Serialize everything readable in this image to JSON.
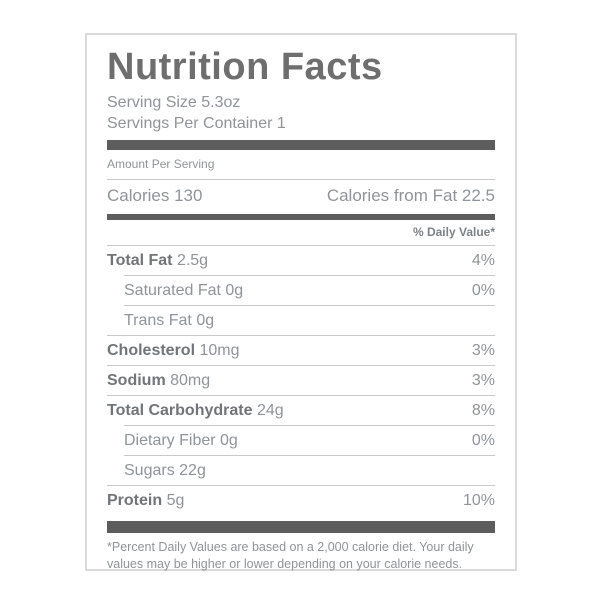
{
  "colors": {
    "title": "#6e6e6e",
    "text_bold": "#717579",
    "text_regular": "#8f949a",
    "thick_bar": "#5d5d5d",
    "thin_divider": "#c9c9c9",
    "box_border": "#dadada"
  },
  "label": {
    "title": "Nutrition Facts",
    "serving_size": "Serving Size 5.3oz",
    "servings_per_container": "Servings Per Container 1",
    "amount_per_serving": "Amount Per Serving",
    "calories": "Calories 130",
    "calories_from_fat": "Calories from Fat 22.5",
    "daily_value_header": "% Daily Value*",
    "rows": [
      {
        "name": "Total Fat",
        "amount": "2.5g",
        "daily_value": "4%"
      },
      {
        "name": "Saturated Fat",
        "amount": "0g",
        "daily_value": "0%"
      },
      {
        "name": "Trans Fat",
        "amount": "0g",
        "daily_value": ""
      },
      {
        "name": "Cholesterol",
        "amount": "10mg",
        "daily_value": "3%"
      },
      {
        "name": "Sodium",
        "amount": "80mg",
        "daily_value": "3%"
      },
      {
        "name": "Total Carbohydrate",
        "amount": "24g",
        "daily_value": "8%"
      },
      {
        "name": "Dietary Fiber",
        "amount": "0g",
        "daily_value": "0%"
      },
      {
        "name": "Sugars",
        "amount": "22g",
        "daily_value": ""
      },
      {
        "name": "Protein",
        "amount": "5g",
        "daily_value": "10%"
      }
    ],
    "footnote": "*Percent Daily Values are based on a 2,000 calorie diet. Your daily values may be higher or lower depending on your calorie needs."
  }
}
